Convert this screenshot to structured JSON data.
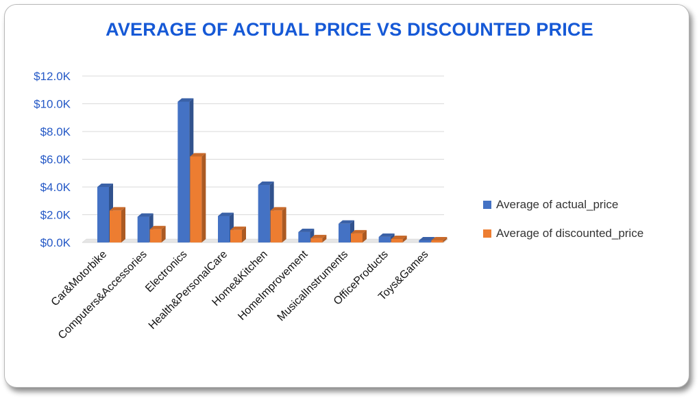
{
  "chart_data": {
    "type": "bar",
    "title": "AVERAGE OF ACTUAL PRICE VS DISCOUNTED PRICE",
    "categories": [
      "Car&Motorbike",
      "Computers&Accessories",
      "Electronics",
      "Health&PersonalCare",
      "Home&Kitchen",
      "HomeImprovement",
      "MusicalInstruments",
      "OfficeProducts",
      "Toys&Games"
    ],
    "series": [
      {
        "name": "Average of actual_price",
        "color": "#4472c4",
        "values": [
          4000,
          1850,
          10150,
          1900,
          4150,
          750,
          1350,
          400,
          150
        ]
      },
      {
        "name": "Average of discounted_price",
        "color": "#ed7d31",
        "values": [
          2300,
          950,
          6200,
          900,
          2300,
          300,
          650,
          250,
          150
        ]
      }
    ],
    "yticks": [
      "$0.0K",
      "$2.0K",
      "$4.0K",
      "$6.0K",
      "$8.0K",
      "$10.0K",
      "$12.0K"
    ],
    "ylim": [
      0,
      12000
    ],
    "xlabel": "",
    "ylabel": "",
    "grid": true,
    "legend": "right"
  }
}
